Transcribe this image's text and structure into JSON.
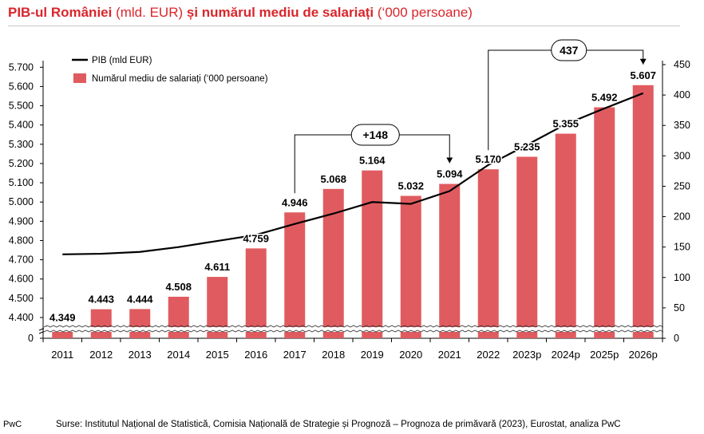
{
  "title": {
    "part1": "PIB-ul României",
    "part2": " (mld. EUR) ",
    "part3": "și numărul mediu de salariați",
    "part4": " (‘000 persoane)"
  },
  "colors": {
    "bar": "#e05b5f",
    "line": "#000000",
    "title": "#d9262c"
  },
  "chart_data": {
    "type": "bar",
    "categories": [
      "2011",
      "2012",
      "2013",
      "2014",
      "2015",
      "2016",
      "2017",
      "2018",
      "2019",
      "2020",
      "2021",
      "2022",
      "2023p",
      "2024p",
      "2025p",
      "2026p"
    ],
    "series": [
      {
        "name": "Numărul mediu de salariați (‘000 persoane)",
        "kind": "bar",
        "axis": "left",
        "values": [
          4349,
          4443,
          4444,
          4508,
          4611,
          4759,
          4946,
          5068,
          5164,
          5032,
          5094,
          5170,
          5235,
          5355,
          5492,
          5607
        ],
        "labels": [
          "4.349",
          "4.443",
          "4.444",
          "4.508",
          "4.611",
          "4.759",
          "4.946",
          "5.068",
          "5.164",
          "5.032",
          "5.094",
          "5.170",
          "5.235",
          "5.355",
          "5.492",
          "5.607"
        ]
      },
      {
        "name": "PIB (mld EUR)",
        "kind": "line",
        "axis": "right",
        "values": [
          138,
          139,
          142,
          150,
          160,
          170,
          188,
          205,
          224,
          221,
          242,
          285,
          318,
          352,
          378,
          403
        ]
      }
    ],
    "left_axis": {
      "ticks": [
        4400,
        4500,
        4600,
        4700,
        4800,
        4900,
        5000,
        5100,
        5200,
        5300,
        5400,
        5500,
        5600,
        5700
      ],
      "tick_labels": [
        "4.400",
        "4.500",
        "4.600",
        "4.700",
        "4.800",
        "4.900",
        "5.000",
        "5.100",
        "5.200",
        "5.300",
        "5.400",
        "5.500",
        "5.600",
        "5.700"
      ],
      "zero_label": "0",
      "break": true
    },
    "right_axis": {
      "ticks": [
        0,
        50,
        100,
        150,
        200,
        250,
        300,
        350,
        400,
        450
      ],
      "tick_labels": [
        "0",
        "50",
        "100",
        "150",
        "200",
        "250",
        "300",
        "350",
        "400",
        "450"
      ]
    },
    "legend": {
      "placement": "top-left",
      "line_label": "PIB (mld EUR)",
      "bar_label": "Numărul mediu de salariați (‘000 persoane)"
    },
    "annotations": [
      {
        "text": "+148",
        "from": "2017",
        "to": "2021"
      },
      {
        "text": "437",
        "from": "2022",
        "to": "2026p"
      }
    ]
  },
  "footer": {
    "brand": "PwC",
    "source": "Surse: Institutul Național de Statistică, Comisia Națională de Strategie și Prognoză – Prognoza de primăvară (2023), Eurostat, analiza PwC"
  }
}
